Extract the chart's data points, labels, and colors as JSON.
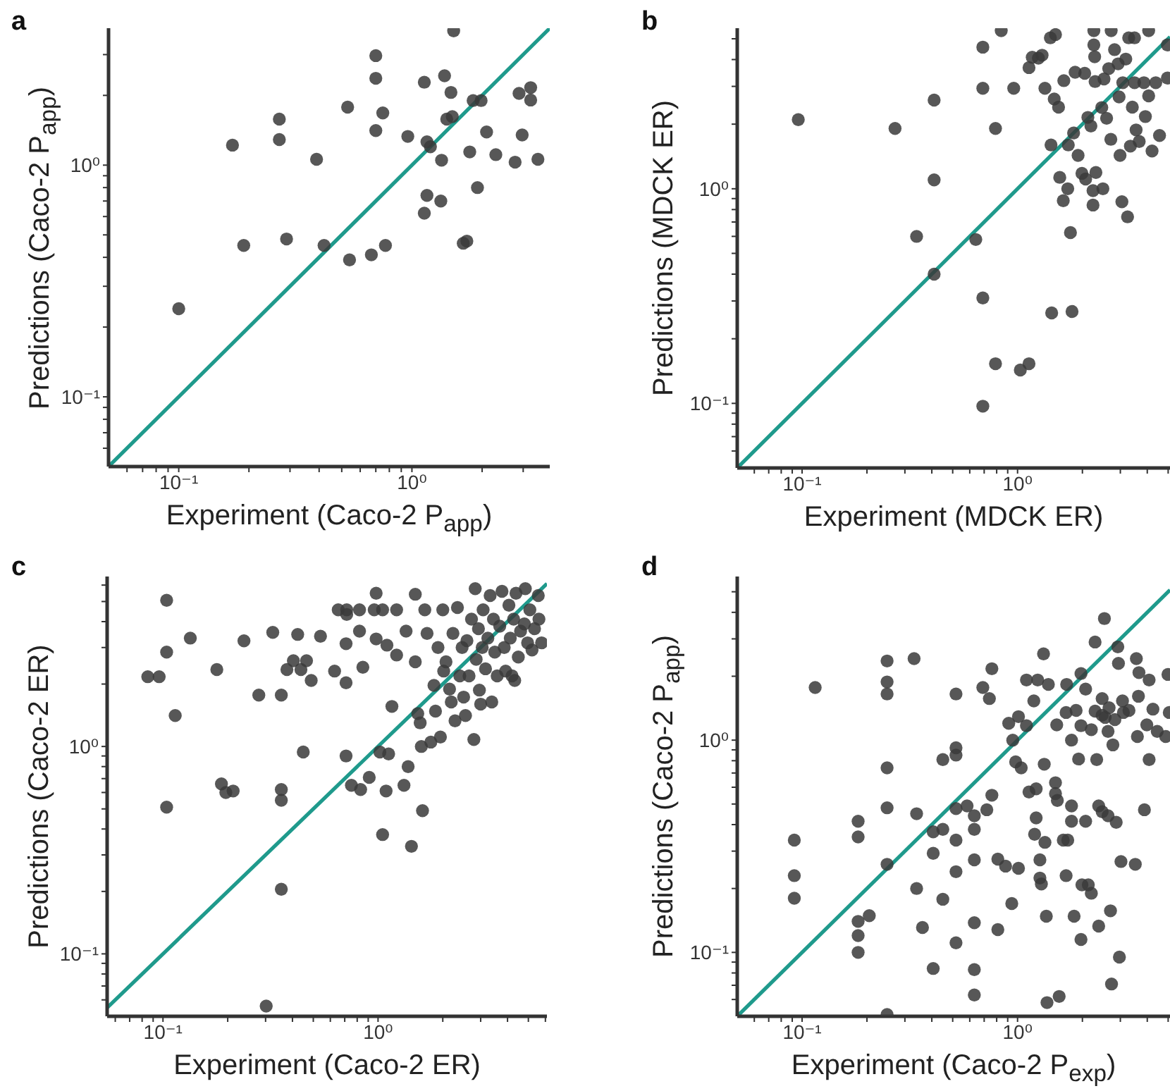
{
  "chart_data": [
    {
      "type": "scatter",
      "title": "a",
      "xlabel": "Experiment (Caco-2 P$_{app}$)",
      "ylabel": "Predictions (Caco-2 P$_{app}$)",
      "log": "xy",
      "xlim": [
        0.05,
        3.9
      ],
      "ylim": [
        0.05,
        3.9
      ],
      "xticks": [
        {
          "value": 0.06,
          "label": null
        },
        {
          "value": 0.07,
          "label": null
        },
        {
          "value": 0.08,
          "label": null
        },
        {
          "value": 0.09,
          "label": null
        },
        {
          "value": 0.1,
          "label": "10⁻¹"
        },
        {
          "value": 0.2,
          "label": null
        },
        {
          "value": 0.3,
          "label": null
        },
        {
          "value": 0.4,
          "label": null
        },
        {
          "value": 0.5,
          "label": null
        },
        {
          "value": 0.6,
          "label": null
        },
        {
          "value": 0.7,
          "label": null
        },
        {
          "value": 0.8,
          "label": null
        },
        {
          "value": 0.9,
          "label": null
        },
        {
          "value": 1,
          "label": "10⁰"
        },
        {
          "value": 2,
          "label": null
        },
        {
          "value": 3,
          "label": null
        }
      ],
      "yticks": [
        {
          "value": 0.06,
          "label": null
        },
        {
          "value": 0.07,
          "label": null
        },
        {
          "value": 0.08,
          "label": null
        },
        {
          "value": 0.09,
          "label": null
        },
        {
          "value": 0.1,
          "label": "10⁻¹"
        },
        {
          "value": 0.2,
          "label": null
        },
        {
          "value": 0.3,
          "label": null
        },
        {
          "value": 0.4,
          "label": null
        },
        {
          "value": 0.5,
          "label": null
        },
        {
          "value": 0.6,
          "label": null
        },
        {
          "value": 0.7,
          "label": null
        },
        {
          "value": 0.8,
          "label": null
        },
        {
          "value": 0.9,
          "label": null
        },
        {
          "value": 1,
          "label": "10⁰"
        },
        {
          "value": 2,
          "label": null
        },
        {
          "value": 3,
          "label": null
        }
      ],
      "series": [
        {
          "marker": "circle",
          "color": "#3a3a3a",
          "x": [
            0.1,
            0.17,
            0.19,
            0.27,
            0.27,
            0.29,
            0.39,
            0.42,
            0.53,
            0.54,
            0.67,
            0.7,
            0.7,
            0.7,
            0.75,
            0.77,
            0.96,
            1.13,
            1.13,
            1.16,
            1.16,
            1.2,
            1.33,
            1.34,
            1.38,
            1.41,
            1.47,
            1.49,
            1.51,
            1.66,
            1.72,
            1.77,
            1.83,
            1.91,
            1.98,
            2.09,
            2.29,
            2.77,
            2.88,
            2.97,
            3.23,
            3.23,
            3.47
          ],
          "values": [
            0.24,
            1.22,
            0.45,
            1.58,
            1.29,
            0.48,
            1.06,
            0.45,
            1.78,
            0.39,
            0.41,
            2.97,
            2.37,
            1.41,
            1.68,
            0.45,
            1.33,
            2.28,
            0.62,
            0.74,
            1.26,
            1.2,
            0.7,
            1.05,
            2.43,
            1.58,
            2.06,
            1.62,
            3.8,
            0.46,
            0.47,
            1.14,
            1.9,
            0.8,
            1.9,
            1.39,
            1.11,
            1.03,
            2.04,
            1.35,
            2.16,
            1.91,
            1.06
          ]
        },
        {
          "type": "line",
          "color": "#1f9a8c",
          "x": [
            0.05,
            3.9
          ],
          "values": [
            0.05,
            3.9
          ]
        }
      ]
    },
    {
      "type": "scatter",
      "title": "b",
      "xlabel": "Experiment (MDCK ER)",
      "ylabel": "Predictions (MDCK ER)",
      "log": "xy",
      "xlim": [
        0.05,
        5.1
      ],
      "ylim": [
        0.05,
        5.6
      ],
      "xticks": [
        {
          "value": 0.06,
          "label": null
        },
        {
          "value": 0.07,
          "label": null
        },
        {
          "value": 0.08,
          "label": null
        },
        {
          "value": 0.09,
          "label": null
        },
        {
          "value": 0.1,
          "label": "10⁻¹"
        },
        {
          "value": 0.2,
          "label": null
        },
        {
          "value": 0.3,
          "label": null
        },
        {
          "value": 0.4,
          "label": null
        },
        {
          "value": 0.5,
          "label": null
        },
        {
          "value": 0.6,
          "label": null
        },
        {
          "value": 0.7,
          "label": null
        },
        {
          "value": 0.8,
          "label": null
        },
        {
          "value": 0.9,
          "label": null
        },
        {
          "value": 1,
          "label": "10⁰"
        },
        {
          "value": 2,
          "label": null
        },
        {
          "value": 3,
          "label": null
        },
        {
          "value": 4,
          "label": null
        },
        {
          "value": 5,
          "label": null
        }
      ],
      "yticks": [
        {
          "value": 0.06,
          "label": null
        },
        {
          "value": 0.07,
          "label": null
        },
        {
          "value": 0.08,
          "label": null
        },
        {
          "value": 0.09,
          "label": null
        },
        {
          "value": 0.1,
          "label": "10⁻¹"
        },
        {
          "value": 0.2,
          "label": null
        },
        {
          "value": 0.3,
          "label": null
        },
        {
          "value": 0.4,
          "label": null
        },
        {
          "value": 0.5,
          "label": null
        },
        {
          "value": 0.6,
          "label": null
        },
        {
          "value": 0.7,
          "label": null
        },
        {
          "value": 0.8,
          "label": null
        },
        {
          "value": 0.9,
          "label": null
        },
        {
          "value": 1,
          "label": "10⁰"
        },
        {
          "value": 2,
          "label": null
        },
        {
          "value": 3,
          "label": null
        },
        {
          "value": 4,
          "label": null
        },
        {
          "value": 5,
          "label": null
        }
      ],
      "series": [
        {
          "marker": "circle",
          "color": "#3a3a3a",
          "x": [
            0.096,
            0.27,
            0.34,
            0.41,
            0.41,
            0.41,
            0.64,
            0.69,
            0.69,
            0.69,
            0.69,
            0.79,
            0.79,
            0.84,
            0.96,
            1.03,
            1.13,
            1.13,
            1.17,
            1.25,
            1.3,
            1.34,
            1.42,
            1.43,
            1.44,
            1.48,
            1.5,
            1.55,
            1.57,
            1.64,
            1.63,
            1.71,
            1.72,
            1.76,
            1.79,
            1.82,
            1.85,
            1.91,
            1.99,
            2.07,
            2.05,
            2.12,
            2.19,
            2.24,
            2.24,
            2.26,
            2.26,
            2.28,
            2.31,
            2.29,
            2.46,
            2.49,
            2.52,
            2.59,
            2.65,
            2.71,
            2.72,
            2.82,
            2.93,
            2.96,
            2.99,
            3.05,
            3.08,
            3.18,
            3.24,
            3.28,
            3.34,
            3.41,
            3.49,
            3.49,
            3.55,
            3.67,
            3.86,
            3.92,
            4.06,
            4.06,
            4.21,
            4.38,
            4.56,
            4.96,
            4.96
          ],
          "values": [
            2.1,
            1.91,
            0.6,
            2.59,
            1.1,
            0.4,
            0.58,
            4.57,
            2.94,
            0.31,
            0.097,
            1.91,
            0.153,
            5.45,
            2.94,
            0.143,
            0.153,
            3.67,
            4.1,
            4.06,
            4.19,
            2.94,
            5.05,
            1.6,
            0.264,
            2.62,
            5.23,
            2.4,
            1.13,
            3.19,
            0.88,
            1.0,
            1.6,
            0.625,
            0.268,
            1.82,
            3.49,
            1.43,
            1.18,
            1.11,
            3.45,
            2.15,
            1.96,
            0.84,
            0.98,
            4.68,
            5.45,
            4.12,
            1.19,
            3.16,
            2.39,
            1.0,
            3.25,
            2.13,
            3.63,
            1.7,
            5.45,
            4.45,
            3.82,
            2.68,
            1.43,
            0.87,
            3.12,
            4.02,
            0.74,
            5.05,
            1.58,
            2.4,
            5.05,
            3.12,
            1.88,
            1.66,
            3.12,
            2.17,
            2.71,
            5.45,
            1.5,
            3.12,
            1.77,
            3.28,
            4.68
          ]
        },
        {
          "type": "line",
          "color": "#1f9a8c",
          "x": [
            0.05,
            5.1
          ],
          "values": [
            0.05,
            5.1
          ]
        }
      ]
    },
    {
      "type": "scatter",
      "title": "c",
      "xlabel": "Experiment (Caco-2 ER)",
      "ylabel": "Predictions (Caco-2 ER)",
      "log": "xy",
      "xlim": [
        0.055,
        6.1
      ],
      "ylim": [
        0.05,
        6.6
      ],
      "xticks": [
        {
          "value": 0.06,
          "label": null
        },
        {
          "value": 0.07,
          "label": null
        },
        {
          "value": 0.08,
          "label": null
        },
        {
          "value": 0.09,
          "label": null
        },
        {
          "value": 0.1,
          "label": "10⁻¹"
        },
        {
          "value": 0.2,
          "label": null
        },
        {
          "value": 0.3,
          "label": null
        },
        {
          "value": 0.4,
          "label": null
        },
        {
          "value": 0.5,
          "label": null
        },
        {
          "value": 0.6,
          "label": null
        },
        {
          "value": 0.7,
          "label": null
        },
        {
          "value": 0.8,
          "label": null
        },
        {
          "value": 0.9,
          "label": null
        },
        {
          "value": 1,
          "label": "10⁰"
        },
        {
          "value": 2,
          "label": null
        },
        {
          "value": 3,
          "label": null
        },
        {
          "value": 4,
          "label": null
        },
        {
          "value": 5,
          "label": null
        },
        {
          "value": 6,
          "label": null
        }
      ],
      "yticks": [
        {
          "value": 0.06,
          "label": null
        },
        {
          "value": 0.07,
          "label": null
        },
        {
          "value": 0.08,
          "label": null
        },
        {
          "value": 0.09,
          "label": null
        },
        {
          "value": 0.1,
          "label": "10⁻¹"
        },
        {
          "value": 0.2,
          "label": null
        },
        {
          "value": 0.3,
          "label": null
        },
        {
          "value": 0.4,
          "label": null
        },
        {
          "value": 0.5,
          "label": null
        },
        {
          "value": 0.6,
          "label": null
        },
        {
          "value": 0.7,
          "label": null
        },
        {
          "value": 0.8,
          "label": null
        },
        {
          "value": 0.9,
          "label": null
        },
        {
          "value": 1,
          "label": "10⁰"
        },
        {
          "value": 2,
          "label": null
        },
        {
          "value": 3,
          "label": null
        },
        {
          "value": 4,
          "label": null
        },
        {
          "value": 5,
          "label": null
        },
        {
          "value": 6,
          "label": null
        }
      ],
      "series": [
        {
          "marker": "circle",
          "color": "#3a3a3a",
          "x": [
            0.104,
            0.085,
            0.096,
            0.104,
            0.104,
            0.114,
            0.134,
            0.178,
            0.187,
            0.196,
            0.212,
            0.238,
            0.279,
            0.302,
            0.324,
            0.355,
            0.355,
            0.355,
            0.355,
            0.377,
            0.404,
            0.423,
            0.438,
            0.449,
            0.465,
            0.489,
            0.54,
            0.628,
            0.653,
            0.715,
            0.715,
            0.71,
            0.71,
            0.71,
            0.752,
            0.82,
            0.82,
            0.83,
            0.85,
            0.91,
            0.96,
            0.98,
            0.98,
            1.02,
            1.05,
            1.05,
            1.09,
            1.1,
            1.12,
            1.22,
            1.16,
            1.22,
            1.32,
            1.35,
            1.38,
            1.43,
            1.49,
            1.49,
            1.53,
            1.57,
            1.59,
            1.61,
            1.65,
            1.69,
            1.76,
            1.82,
            1.85,
            1.9,
            1.95,
            2.0,
            2.02,
            2.07,
            2.15,
            2.19,
            2.23,
            2.28,
            2.34,
            2.4,
            2.46,
            2.5,
            2.55,
            2.59,
            2.65,
            2.72,
            2.79,
            2.83,
            2.86,
            2.93,
            2.96,
            3.0,
            3.05,
            3.08,
            3.16,
            3.24,
            3.32,
            3.38,
            3.44,
            3.49,
            3.58,
            3.68,
            3.77,
            3.86,
            3.92,
            4.06,
            4.12,
            4.2,
            4.27,
            4.32,
            4.38,
            4.49,
            4.6,
            4.79,
            4.84,
            4.96,
            5.08,
            5.2,
            5.34,
            5.56,
            5.6,
            5.76
          ],
          "values": [
            5.07,
            2.17,
            2.17,
            2.85,
            0.51,
            1.41,
            3.33,
            2.35,
            0.66,
            0.6,
            0.61,
            3.23,
            1.77,
            0.056,
            3.55,
            1.77,
            0.62,
            0.55,
            0.205,
            2.35,
            2.59,
            3.47,
            2.35,
            0.94,
            2.59,
            2.08,
            3.4,
            2.31,
            4.56,
            4.56,
            4.33,
            2.03,
            3.13,
            0.9,
            0.65,
            4.56,
            3.6,
            0.62,
            2.41,
            0.71,
            4.56,
            5.48,
            3.3,
            0.94,
            4.56,
            0.376,
            0.61,
            3.08,
            0.92,
            4.56,
            1.56,
            2.76,
            0.65,
            3.6,
            0.8,
            0.33,
            5.42,
            2.56,
            1.44,
            1.3,
            1.0,
            0.49,
            4.56,
            3.51,
            1.05,
            1.97,
            1.48,
            3.0,
            1.11,
            4.56,
            2.31,
            2.56,
            1.89,
            1.64,
            3.51,
            1.33,
            4.68,
            2.19,
            3.0,
            1.73,
            1.41,
            3.24,
            2.19,
            4.11,
            1.08,
            5.77,
            2.63,
            3.7,
            1.87,
            1.6,
            3.0,
            4.56,
            2.37,
            3.33,
            5.34,
            1.64,
            4.11,
            2.85,
            2.19,
            3.8,
            5.6,
            3.0,
            2.31,
            4.8,
            3.33,
            2.19,
            4.11,
            2.08,
            5.48,
            2.7,
            3.6,
            3.9,
            5.77,
            3.16,
            4.56,
            2.92,
            3.7,
            5.34,
            4.11,
            3.16
          ]
        },
        {
          "type": "line",
          "color": "#1f9a8c",
          "x": [
            0.055,
            6.1
          ],
          "values": [
            0.055,
            6.1
          ]
        }
      ]
    },
    {
      "type": "scatter",
      "title": "d",
      "xlabel": "Experiment (Caco-2 P$_{exp}$)",
      "ylabel": "Predictions (Caco-2 P$_{app}$)",
      "log": "xy",
      "xlim": [
        0.05,
        5.1
      ],
      "ylim": [
        0.05,
        5.9
      ],
      "xticks": [
        {
          "value": 0.06,
          "label": null
        },
        {
          "value": 0.07,
          "label": null
        },
        {
          "value": 0.08,
          "label": null
        },
        {
          "value": 0.09,
          "label": null
        },
        {
          "value": 0.1,
          "label": "10⁻¹"
        },
        {
          "value": 0.2,
          "label": null
        },
        {
          "value": 0.3,
          "label": null
        },
        {
          "value": 0.4,
          "label": null
        },
        {
          "value": 0.5,
          "label": null
        },
        {
          "value": 0.6,
          "label": null
        },
        {
          "value": 0.7,
          "label": null
        },
        {
          "value": 0.8,
          "label": null
        },
        {
          "value": 0.9,
          "label": null
        },
        {
          "value": 1,
          "label": "10⁰"
        },
        {
          "value": 2,
          "label": null
        },
        {
          "value": 3,
          "label": null
        },
        {
          "value": 4,
          "label": null
        },
        {
          "value": 5,
          "label": null
        }
      ],
      "yticks": [
        {
          "value": 0.06,
          "label": null
        },
        {
          "value": 0.07,
          "label": null
        },
        {
          "value": 0.08,
          "label": null
        },
        {
          "value": 0.09,
          "label": null
        },
        {
          "value": 0.1,
          "label": "10⁻¹"
        },
        {
          "value": 0.2,
          "label": null
        },
        {
          "value": 0.3,
          "label": null
        },
        {
          "value": 0.4,
          "label": null
        },
        {
          "value": 0.5,
          "label": null
        },
        {
          "value": 0.6,
          "label": null
        },
        {
          "value": 0.7,
          "label": null
        },
        {
          "value": 0.8,
          "label": null
        },
        {
          "value": 0.9,
          "label": null
        },
        {
          "value": 1,
          "label": "10⁰"
        },
        {
          "value": 2,
          "label": null
        },
        {
          "value": 3,
          "label": null
        },
        {
          "value": 4,
          "label": null
        },
        {
          "value": 5,
          "label": null
        }
      ],
      "series": [
        {
          "marker": "circle",
          "color": "#3a3a3a",
          "x": [
            0.092,
            0.092,
            0.092,
            0.115,
            0.182,
            0.182,
            0.182,
            0.182,
            0.182,
            0.205,
            0.248,
            0.248,
            0.248,
            0.248,
            0.248,
            0.248,
            0.248,
            0.331,
            0.34,
            0.34,
            0.362,
            0.406,
            0.406,
            0.406,
            0.45,
            0.45,
            0.45,
            0.518,
            0.518,
            0.518,
            0.518,
            0.518,
            0.518,
            0.518,
            0.583,
            0.63,
            0.63,
            0.63,
            0.63,
            0.63,
            0.63,
            0.69,
            0.72,
            0.74,
            0.76,
            0.76,
            0.81,
            0.81,
            0.88,
            0.91,
            0.94,
            0.95,
            0.98,
            1.01,
            1.01,
            1.04,
            1.1,
            1.1,
            1.13,
            1.19,
            1.2,
            1.22,
            1.22,
            1.24,
            1.27,
            1.27,
            1.29,
            1.32,
            1.33,
            1.34,
            1.36,
            1.37,
            1.39,
            1.5,
            1.5,
            1.53,
            1.52,
            1.56,
            1.63,
            1.68,
            1.68,
            1.69,
            1.71,
            1.78,
            1.78,
            1.78,
            1.83,
            1.87,
            1.92,
            1.97,
            1.97,
            1.97,
            1.99,
            2.07,
            2.07,
            2.13,
            2.2,
            2.2,
            2.29,
            2.29,
            2.33,
            2.38,
            2.38,
            2.47,
            2.47,
            2.47,
            2.53,
            2.55,
            2.63,
            2.63,
            2.66,
            2.73,
            2.7,
            2.77,
            2.83,
            2.87,
            2.92,
            2.94,
            2.97,
            3.02,
            3.07,
            3.1,
            3.29,
            3.52,
            3.56,
            3.6,
            3.64,
            3.66,
            3.88,
            3.98,
            4.08,
            4.08,
            4.25,
            4.45,
            4.87,
            4.99,
            5.06
          ],
          "values": [
            0.338,
            0.23,
            0.18,
            1.77,
            0.415,
            0.35,
            0.14,
            0.12,
            0.1,
            0.149,
            2.36,
            1.88,
            1.65,
            0.74,
            0.48,
            0.26,
            0.051,
            2.42,
            0.45,
            0.2,
            0.131,
            0.37,
            0.084,
            0.293,
            0.81,
            0.38,
            0.178,
            0.92,
            0.85,
            1.65,
            0.476,
            0.338,
            0.24,
            0.111,
            0.49,
            0.44,
            0.38,
            0.273,
            0.138,
            0.083,
            0.063,
            1.77,
            0.47,
            1.57,
            2.17,
            0.55,
            0.275,
            0.128,
            0.255,
            1.2,
            0.17,
            1.0,
            0.79,
            1.29,
            0.249,
            0.74,
            1.92,
            1.17,
            0.57,
            1.53,
            0.36,
            0.43,
            0.59,
            1.92,
            0.273,
            0.224,
            0.21,
            2.55,
            0.77,
            0.33,
            0.148,
            0.058,
            1.83,
            0.63,
            0.56,
            0.52,
            1.18,
            0.062,
            0.338,
            1.35,
            0.23,
            1.83,
            0.338,
            0.49,
            1.0,
            0.415,
            0.148,
            1.38,
            0.815,
            1.17,
            2.06,
            0.115,
            0.208,
            1.74,
            0.415,
            0.208,
            0.19,
            1.12,
            1.37,
            2.9,
            0.81,
            0.49,
            0.133,
            1.31,
            1.57,
            0.46,
            3.74,
            1.28,
            1.1,
            0.44,
            1.42,
            0.071,
            0.157,
            0.95,
            1.25,
            0.41,
            2.75,
            2.3,
            0.095,
            0.268,
            1.53,
            1.35,
            1.38,
            0.26,
            2.42,
            1.04,
            1.61,
            2.08,
            0.47,
            1.18,
            1.92,
            0.81,
            1.4,
            1.1,
            1.04,
            2.04,
            1.35
          ]
        },
        {
          "type": "line",
          "color": "#1f9a8c",
          "x": [
            0.05,
            5.1
          ],
          "values": [
            0.05,
            5.1
          ]
        }
      ]
    }
  ]
}
